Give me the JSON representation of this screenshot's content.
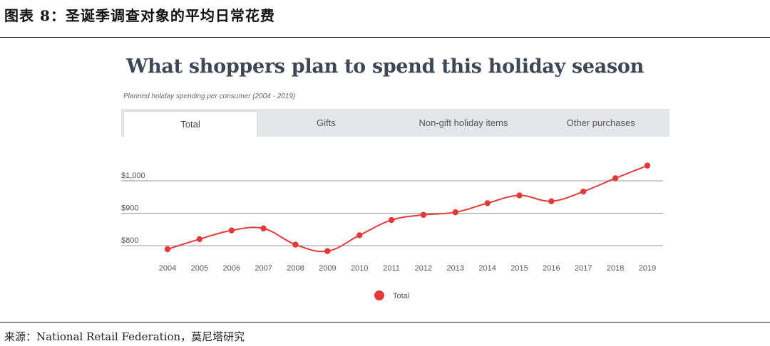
{
  "figure": {
    "caption": "图表 8：圣诞季调查对象的平均日常花费",
    "source": "来源：National Retail Federation，莫尼塔研究"
  },
  "tabs": [
    {
      "label": "Total",
      "active": true
    },
    {
      "label": "Gifts",
      "active": false
    },
    {
      "label": "Non-gift holiday items",
      "active": false
    },
    {
      "label": "Other purchases",
      "active": false
    }
  ],
  "colors": {
    "series": "#e03b3b",
    "grid": "#999999",
    "tab_bg": "#e4e5e7"
  },
  "chart_data": {
    "type": "line",
    "title": "What shoppers plan to spend this holiday season",
    "subtitle": "Planned holiday spending per consumer (2004 - 2019)",
    "x": [
      "2004",
      "2005",
      "2006",
      "2007",
      "2008",
      "2009",
      "2010",
      "2011",
      "2012",
      "2013",
      "2014",
      "2015",
      "2016",
      "2017",
      "2018",
      "2019"
    ],
    "series": [
      {
        "name": "Total",
        "values": [
          789,
          820,
          847,
          853,
          803,
          783,
          832,
          879,
          895,
          903,
          931,
          955,
          937,
          967,
          1008,
          1047
        ]
      }
    ],
    "yticks": [
      800,
      900,
      1000
    ],
    "ytick_labels": [
      "$800",
      "$900",
      "$1,000"
    ],
    "ylim": [
      775,
      1060
    ],
    "legend_position": "bottom-center",
    "grid": true
  }
}
